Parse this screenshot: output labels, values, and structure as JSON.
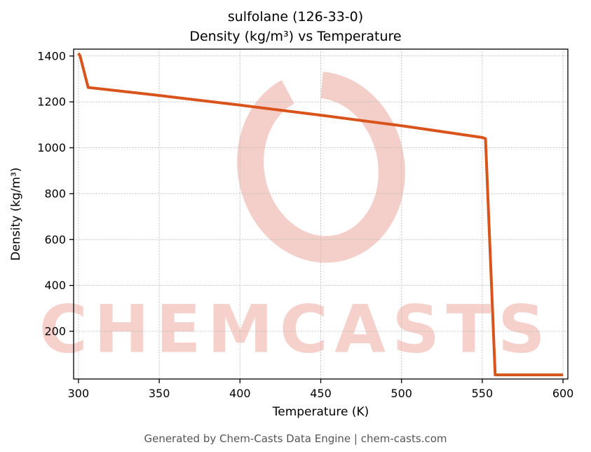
{
  "title": {
    "line1": "sulfolane (126-33-0)",
    "line2": "Density (kg/m³) vs Temperature"
  },
  "footer": {
    "text": "Generated by Chem-Casts Data Engine | chem-casts.com"
  },
  "watermark": {
    "text": "CHEMCASTS",
    "color": "#e05848"
  },
  "chart_data": {
    "type": "line",
    "title": "sulfolane (126-33-0) — Density (kg/m³) vs Temperature",
    "xlabel": "Temperature (K)",
    "ylabel": "Density (kg/m³)",
    "xlim": [
      297,
      603
    ],
    "ylim": [
      -8,
      1430
    ],
    "x_ticks": [
      300,
      350,
      400,
      450,
      500,
      550,
      600
    ],
    "y_ticks": [
      200,
      400,
      600,
      800,
      1000,
      1200,
      1400
    ],
    "grid": true,
    "legend": "none",
    "line_color": "#d9541c",
    "series": [
      {
        "name": "density",
        "points": [
          [
            300,
            1412
          ],
          [
            301,
            1400
          ],
          [
            306,
            1263
          ],
          [
            350,
            1228
          ],
          [
            400,
            1186
          ],
          [
            450,
            1142
          ],
          [
            500,
            1096
          ],
          [
            550,
            1045
          ],
          [
            552,
            1040
          ],
          [
            558,
            10
          ],
          [
            600,
            10
          ]
        ]
      }
    ]
  }
}
